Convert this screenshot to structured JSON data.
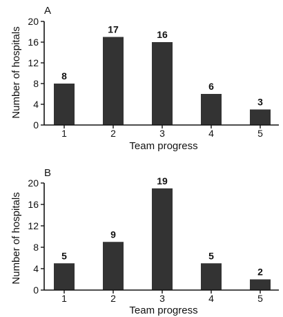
{
  "chart_data": [
    {
      "type": "bar",
      "panel_label": "A",
      "categories": [
        "1",
        "2",
        "3",
        "4",
        "5"
      ],
      "values": [
        8,
        17,
        16,
        6,
        3
      ],
      "data_labels": [
        "8",
        "17",
        "16",
        "6",
        "3"
      ],
      "xlabel": "Team progress",
      "ylabel": "Number of hospitals",
      "ylim": [
        0,
        20
      ],
      "yticks": [
        "0",
        "4",
        "8",
        "12",
        "16",
        "20"
      ],
      "bar_color": "#333333",
      "grid": false,
      "legend": "none"
    },
    {
      "type": "bar",
      "panel_label": "B",
      "categories": [
        "1",
        "2",
        "3",
        "4",
        "5"
      ],
      "values": [
        5,
        9,
        19,
        5,
        2
      ],
      "data_labels": [
        "5",
        "9",
        "19",
        "5",
        "2"
      ],
      "xlabel": "Team progress",
      "ylabel": "Number of hospitals",
      "ylim": [
        0,
        20
      ],
      "yticks": [
        "0",
        "4",
        "8",
        "12",
        "16",
        "20"
      ],
      "bar_color": "#333333",
      "grid": false,
      "legend": "none"
    }
  ]
}
